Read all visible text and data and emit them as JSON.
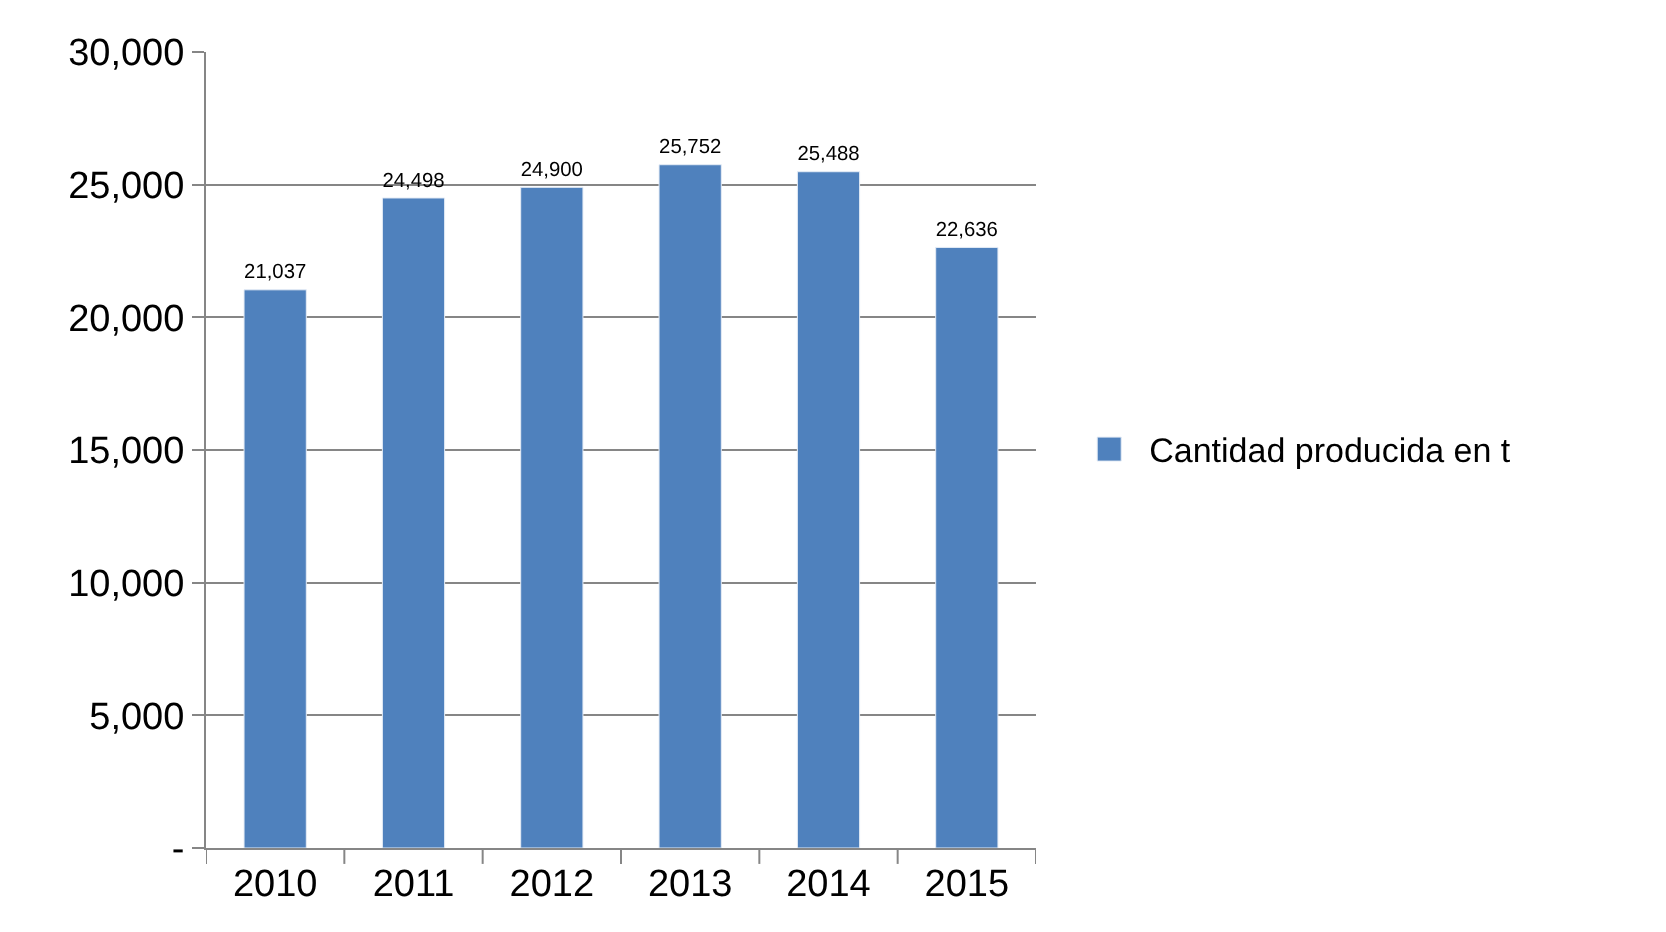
{
  "chart_data": {
    "type": "bar",
    "categories": [
      "2010",
      "2011",
      "2012",
      "2013",
      "2014",
      "2015"
    ],
    "series": [
      {
        "name": "Cantidad producida en t",
        "color": "#4f81bd",
        "values": [
          21037,
          24498,
          24900,
          25752,
          25488,
          22636
        ],
        "value_labels": [
          "21,037",
          "24,498",
          "24,900",
          "25,752",
          "25,488",
          "22,636"
        ]
      }
    ],
    "ylim": [
      0,
      30000
    ],
    "yticks": [
      {
        "value": 0,
        "label": "-"
      },
      {
        "value": 5000,
        "label": "5,000"
      },
      {
        "value": 10000,
        "label": "10,000"
      },
      {
        "value": 15000,
        "label": "15,000"
      },
      {
        "value": 20000,
        "label": "20,000"
      },
      {
        "value": 25000,
        "label": "25,000"
      },
      {
        "value": 30000,
        "label": "30,000"
      }
    ],
    "grid": "y",
    "legend": "right"
  }
}
